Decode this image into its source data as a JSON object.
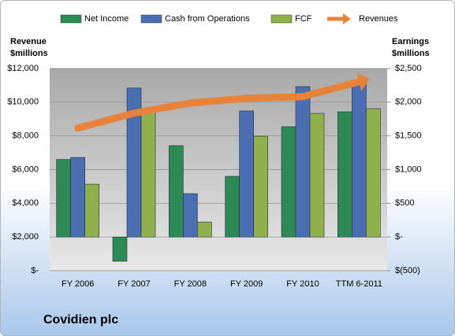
{
  "chart_data": {
    "type": "bar",
    "title": "Covidien plc",
    "y_label": "Revenue $millions",
    "y2_label": "Earnings $millions",
    "categories": [
      "FY 2006",
      "FY 2007",
      "FY 2008",
      "FY 2009",
      "FY 2010",
      "TTM 6-2011"
    ],
    "series": [
      {
        "name": "Net Income",
        "color": "#2e8a55",
        "axis": "y2",
        "values": [
          1150,
          -360,
          1355,
          900,
          1636,
          1857
        ]
      },
      {
        "name": "Cash from Operations",
        "color": "#4b6eb3",
        "axis": "y2",
        "values": [
          1180,
          2210,
          643,
          1870,
          2231,
          2325
        ]
      },
      {
        "name": "FCF",
        "color": "#8fb04c",
        "axis": "y2",
        "values": [
          783,
          1870,
          222,
          1495,
          1834,
          1904
        ]
      },
      {
        "name": "Revenues",
        "color": "#e8823a",
        "type": "line",
        "values": [
          8460,
          9350,
          9950,
          10230,
          10330,
          11210
        ]
      }
    ],
    "ylim": [
      0,
      12000
    ],
    "yticks": [
      {
        "value": 0,
        "label": "$-"
      },
      {
        "value": 2000,
        "label": "$2,000"
      },
      {
        "value": 4000,
        "label": "$4,000"
      },
      {
        "value": 6000,
        "label": "$6,000"
      },
      {
        "value": 8000,
        "label": "$8,000"
      },
      {
        "value": 10000,
        "label": "$10,000"
      },
      {
        "value": 12000,
        "label": "$12,000"
      }
    ],
    "y2lim": [
      -500,
      2500
    ],
    "y2ticks": [
      {
        "value": -500,
        "label": "$(500)"
      },
      {
        "value": 0,
        "label": "$-"
      },
      {
        "value": 500,
        "label": "$500"
      },
      {
        "value": 1000,
        "label": "$1,000"
      },
      {
        "value": 1500,
        "label": "$1,500"
      },
      {
        "value": 2000,
        "label": "$2,000"
      },
      {
        "value": 2500,
        "label": "$2,500"
      }
    ],
    "grid": true
  }
}
